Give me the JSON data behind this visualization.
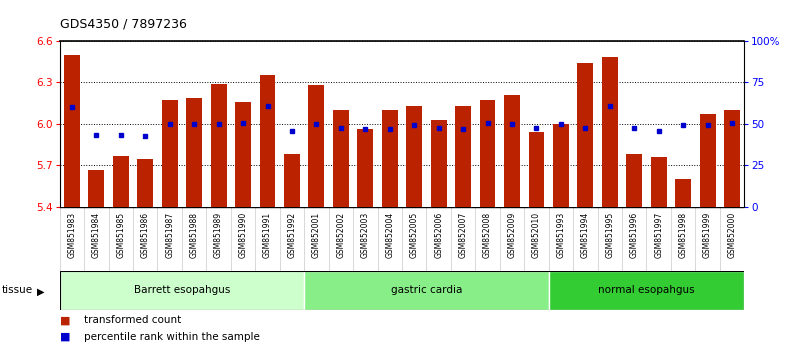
{
  "title": "GDS4350 / 7897236",
  "samples": [
    "GSM851983",
    "GSM851984",
    "GSM851985",
    "GSM851986",
    "GSM851987",
    "GSM851988",
    "GSM851989",
    "GSM851990",
    "GSM851991",
    "GSM851992",
    "GSM852001",
    "GSM852002",
    "GSM852003",
    "GSM852004",
    "GSM852005",
    "GSM852006",
    "GSM852007",
    "GSM852008",
    "GSM852009",
    "GSM852010",
    "GSM851993",
    "GSM851994",
    "GSM851995",
    "GSM851996",
    "GSM851997",
    "GSM851998",
    "GSM851999",
    "GSM852000"
  ],
  "bar_values": [
    6.5,
    5.67,
    5.77,
    5.75,
    6.17,
    6.19,
    6.29,
    6.16,
    6.35,
    5.78,
    6.28,
    6.1,
    5.96,
    6.1,
    6.13,
    6.03,
    6.13,
    6.17,
    6.21,
    5.94,
    6.0,
    6.44,
    6.48,
    5.78,
    5.76,
    5.6,
    6.07,
    6.1
  ],
  "percentile_values": [
    6.12,
    5.92,
    5.92,
    5.91,
    6.0,
    6.0,
    6.0,
    6.01,
    6.13,
    5.95,
    6.0,
    5.97,
    5.96,
    5.96,
    5.99,
    5.97,
    5.96,
    6.01,
    6.0,
    5.97,
    6.0,
    5.97,
    6.13,
    5.97,
    5.95,
    5.99,
    5.99,
    6.01
  ],
  "groups": [
    {
      "label": "Barrett esopahgus",
      "start": 0,
      "end": 10,
      "color": "#ccffcc"
    },
    {
      "label": "gastric cardia",
      "start": 10,
      "end": 20,
      "color": "#88ee88"
    },
    {
      "label": "normal esopahgus",
      "start": 20,
      "end": 28,
      "color": "#33cc33"
    }
  ],
  "ylim": [
    5.4,
    6.6
  ],
  "yticks": [
    5.4,
    5.7,
    6.0,
    6.3,
    6.6
  ],
  "right_yticks": [
    0,
    25,
    50,
    75,
    100
  ],
  "right_ylabels": [
    "0",
    "25",
    "50",
    "75",
    "100%"
  ],
  "bar_color": "#bb2200",
  "dot_color": "#0000cc",
  "bar_width": 0.65,
  "legend_transformed": "transformed count",
  "legend_percentile": "percentile rank within the sample"
}
